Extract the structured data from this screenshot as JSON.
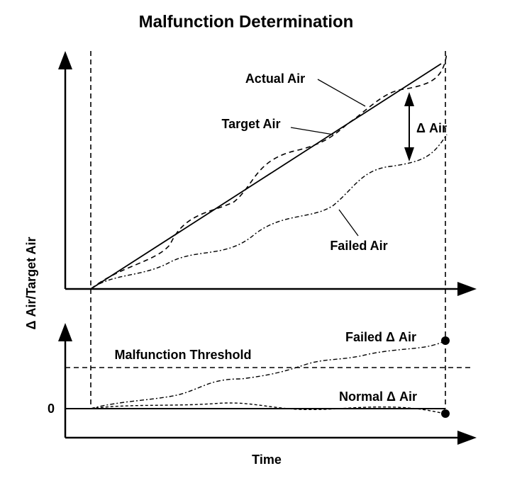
{
  "title": "Malfunction Determination",
  "upper_plot": {
    "y_axis_label": "Δ Air/Target Air",
    "actual_air": "Actual Air",
    "target_air": "Target Air",
    "delta_air": "Δ Air",
    "failed_air": "Failed Air"
  },
  "lower_plot": {
    "failed_delta_air": "Failed Δ Air",
    "threshold": "Malfunction Threshold",
    "normal_delta_air": "Normal Δ Air",
    "zero": "0",
    "x_axis_label": "Time"
  }
}
